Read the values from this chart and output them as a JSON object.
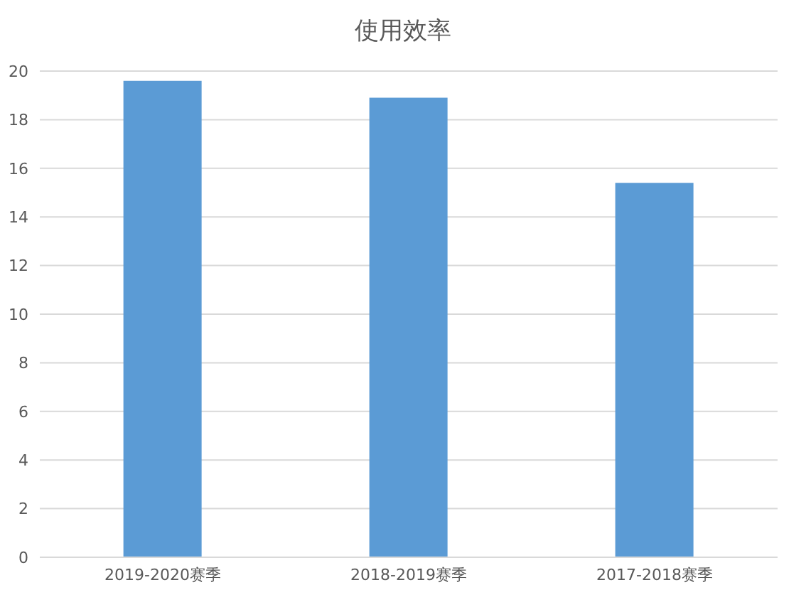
{
  "chart_data": {
    "type": "bar",
    "title": "使用效率",
    "categories": [
      "2019-2020赛季",
      "2018-2019赛季",
      "2017-2018赛季"
    ],
    "values": [
      19.6,
      18.9,
      15.4
    ],
    "color": "#5b9bd5",
    "ylim": [
      0,
      20
    ],
    "yticks": [
      0,
      2,
      4,
      6,
      8,
      10,
      12,
      14,
      16,
      18,
      20
    ],
    "grid": "y"
  }
}
